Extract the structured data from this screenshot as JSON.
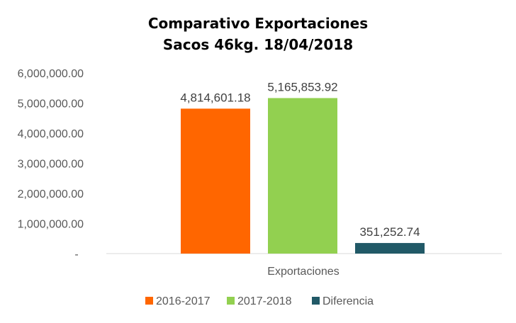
{
  "chart_data": {
    "type": "bar",
    "title": "Comparativo  Exportaciones",
    "subtitle": "Sacos 46kg. 18/04/2018",
    "categories": [
      "Exportaciones"
    ],
    "series": [
      {
        "name": "2016-2017",
        "values": [
          4814601.18
        ],
        "label": "4,814,601.18",
        "color": "#FF6600"
      },
      {
        "name": "2017-2018",
        "values": [
          5165853.92
        ],
        "label": "5,165,853.92",
        "color": "#92D050"
      },
      {
        "name": "Diferencia",
        "values": [
          351252.74
        ],
        "label": "351,252.74",
        "color": "#215967"
      }
    ],
    "ylim": [
      0,
      6000000
    ],
    "yticks": [
      {
        "value": 0,
        "label": "-"
      },
      {
        "value": 1000000,
        "label": "1,000,000.00"
      },
      {
        "value": 2000000,
        "label": "2,000,000.00"
      },
      {
        "value": 3000000,
        "label": "3,000,000.00"
      },
      {
        "value": 4000000,
        "label": "4,000,000.00"
      },
      {
        "value": 5000000,
        "label": "5,000,000.00"
      },
      {
        "value": 6000000,
        "label": "6,000,000.00"
      }
    ],
    "grid": false,
    "legend": "bottom"
  }
}
